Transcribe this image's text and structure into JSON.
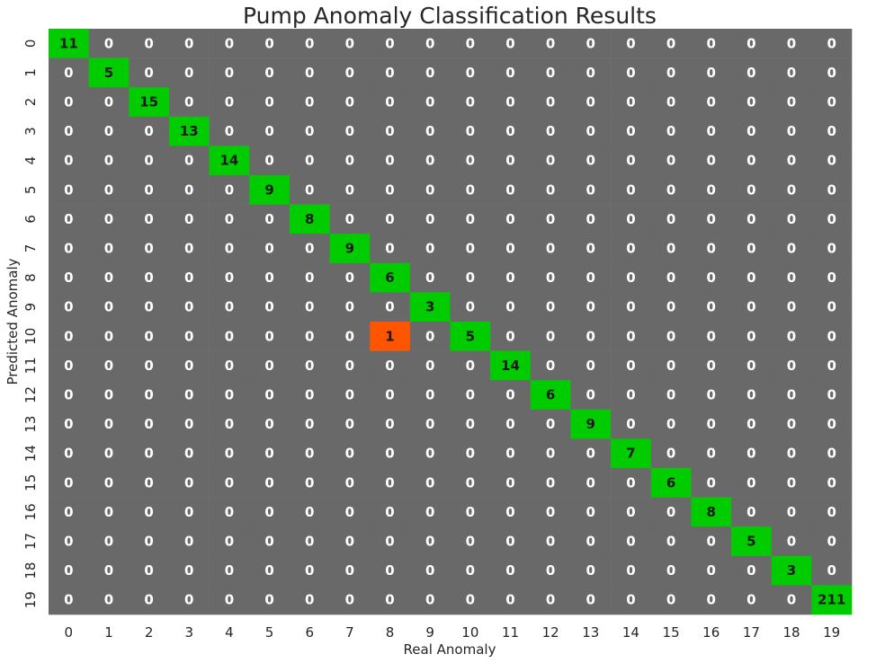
{
  "chart_data": {
    "type": "heatmap",
    "title": "Pump Anomaly Classification Results",
    "xlabel": "Real Anomaly",
    "ylabel": "Predicted Anomaly",
    "x_categories": [
      "0",
      "1",
      "2",
      "3",
      "4",
      "5",
      "6",
      "7",
      "8",
      "9",
      "10",
      "11",
      "12",
      "13",
      "14",
      "15",
      "16",
      "17",
      "18",
      "19"
    ],
    "y_categories": [
      "0",
      "1",
      "2",
      "3",
      "4",
      "5",
      "6",
      "7",
      "8",
      "9",
      "10",
      "11",
      "12",
      "13",
      "14",
      "15",
      "16",
      "17",
      "18",
      "19"
    ],
    "values": [
      [
        11,
        0,
        0,
        0,
        0,
        0,
        0,
        0,
        0,
        0,
        0,
        0,
        0,
        0,
        0,
        0,
        0,
        0,
        0,
        0
      ],
      [
        0,
        5,
        0,
        0,
        0,
        0,
        0,
        0,
        0,
        0,
        0,
        0,
        0,
        0,
        0,
        0,
        0,
        0,
        0,
        0
      ],
      [
        0,
        0,
        15,
        0,
        0,
        0,
        0,
        0,
        0,
        0,
        0,
        0,
        0,
        0,
        0,
        0,
        0,
        0,
        0,
        0
      ],
      [
        0,
        0,
        0,
        13,
        0,
        0,
        0,
        0,
        0,
        0,
        0,
        0,
        0,
        0,
        0,
        0,
        0,
        0,
        0,
        0
      ],
      [
        0,
        0,
        0,
        0,
        14,
        0,
        0,
        0,
        0,
        0,
        0,
        0,
        0,
        0,
        0,
        0,
        0,
        0,
        0,
        0
      ],
      [
        0,
        0,
        0,
        0,
        0,
        9,
        0,
        0,
        0,
        0,
        0,
        0,
        0,
        0,
        0,
        0,
        0,
        0,
        0,
        0
      ],
      [
        0,
        0,
        0,
        0,
        0,
        0,
        8,
        0,
        0,
        0,
        0,
        0,
        0,
        0,
        0,
        0,
        0,
        0,
        0,
        0
      ],
      [
        0,
        0,
        0,
        0,
        0,
        0,
        0,
        9,
        0,
        0,
        0,
        0,
        0,
        0,
        0,
        0,
        0,
        0,
        0,
        0
      ],
      [
        0,
        0,
        0,
        0,
        0,
        0,
        0,
        0,
        6,
        0,
        0,
        0,
        0,
        0,
        0,
        0,
        0,
        0,
        0,
        0
      ],
      [
        0,
        0,
        0,
        0,
        0,
        0,
        0,
        0,
        0,
        3,
        0,
        0,
        0,
        0,
        0,
        0,
        0,
        0,
        0,
        0
      ],
      [
        0,
        0,
        0,
        0,
        0,
        0,
        0,
        0,
        1,
        0,
        5,
        0,
        0,
        0,
        0,
        0,
        0,
        0,
        0,
        0
      ],
      [
        0,
        0,
        0,
        0,
        0,
        0,
        0,
        0,
        0,
        0,
        0,
        14,
        0,
        0,
        0,
        0,
        0,
        0,
        0,
        0
      ],
      [
        0,
        0,
        0,
        0,
        0,
        0,
        0,
        0,
        0,
        0,
        0,
        0,
        6,
        0,
        0,
        0,
        0,
        0,
        0,
        0
      ],
      [
        0,
        0,
        0,
        0,
        0,
        0,
        0,
        0,
        0,
        0,
        0,
        0,
        0,
        9,
        0,
        0,
        0,
        0,
        0,
        0
      ],
      [
        0,
        0,
        0,
        0,
        0,
        0,
        0,
        0,
        0,
        0,
        0,
        0,
        0,
        0,
        7,
        0,
        0,
        0,
        0,
        0
      ],
      [
        0,
        0,
        0,
        0,
        0,
        0,
        0,
        0,
        0,
        0,
        0,
        0,
        0,
        0,
        0,
        6,
        0,
        0,
        0,
        0
      ],
      [
        0,
        0,
        0,
        0,
        0,
        0,
        0,
        0,
        0,
        0,
        0,
        0,
        0,
        0,
        0,
        0,
        8,
        0,
        0,
        0
      ],
      [
        0,
        0,
        0,
        0,
        0,
        0,
        0,
        0,
        0,
        0,
        0,
        0,
        0,
        0,
        0,
        0,
        0,
        5,
        0,
        0
      ],
      [
        0,
        0,
        0,
        0,
        0,
        0,
        0,
        0,
        0,
        0,
        0,
        0,
        0,
        0,
        0,
        0,
        0,
        0,
        3,
        0
      ],
      [
        0,
        0,
        0,
        0,
        0,
        0,
        0,
        0,
        0,
        0,
        0,
        0,
        0,
        0,
        0,
        0,
        0,
        0,
        0,
        211
      ]
    ],
    "colors": {
      "zero": "#696969",
      "correct": "#00cc00",
      "misclassified": "#ff5500",
      "zero_text": "#ffffff",
      "nonzero_text": "#1a1a1a"
    },
    "grid": false,
    "colorbar": false
  }
}
